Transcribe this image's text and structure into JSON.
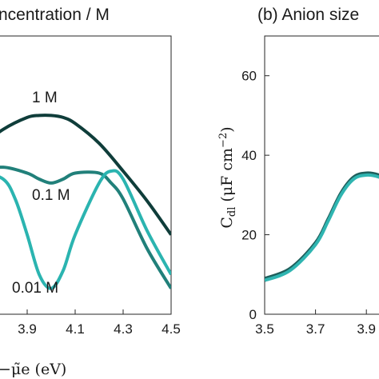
{
  "chart_data": [
    {
      "panel": "a",
      "type": "line",
      "title": "ncentration / M",
      "xlabel": "−μ̃e (eV)",
      "ylabel": "",
      "xlim": [
        3.7,
        4.5
      ],
      "ylim": [
        0,
        70
      ],
      "xticks": [
        "3.9",
        "4.1",
        "4.3",
        "4.5"
      ],
      "yticks": [],
      "grid": false,
      "annotations": [
        "1 M",
        "0.1 M",
        "0.01 M"
      ],
      "series": [
        {
          "name": "1 M",
          "color": "#0f3d3a",
          "x": [
            3.7,
            3.8,
            3.9,
            3.95,
            4.0,
            4.05,
            4.1,
            4.2,
            4.3,
            4.4,
            4.5
          ],
          "y": [
            42,
            46.5,
            49.5,
            50,
            50,
            49.5,
            48,
            43,
            36,
            28.5,
            20
          ]
        },
        {
          "name": "0.1 M",
          "color": "#21807a",
          "x": [
            3.7,
            3.8,
            3.9,
            3.95,
            4.0,
            4.05,
            4.1,
            4.2,
            4.25,
            4.3,
            4.4,
            4.5
          ],
          "y": [
            36,
            37,
            35.5,
            34,
            33,
            34,
            35.5,
            35.5,
            33,
            29,
            16.5,
            6.5
          ]
        },
        {
          "name": "0.01 M",
          "color": "#2bb4b0",
          "x": [
            3.7,
            3.8,
            3.85,
            3.9,
            3.95,
            4.0,
            4.05,
            4.1,
            4.2,
            4.25,
            4.3,
            4.4,
            4.5
          ],
          "y": [
            36,
            34,
            29,
            20,
            10,
            6.5,
            11,
            20,
            33,
            36,
            34,
            21,
            10
          ]
        }
      ]
    },
    {
      "panel": "b",
      "type": "line",
      "title": "(b) Anion size",
      "xlabel": "",
      "ylabel": "Cdl (μF cm−2)",
      "xlim": [
        3.5,
        4.0
      ],
      "ylim": [
        0,
        70
      ],
      "xticks": [
        "3.5",
        "3.7",
        "3.9"
      ],
      "yticks": [
        "0",
        "20",
        "40",
        "60"
      ],
      "grid": false,
      "series": [
        {
          "name": "",
          "color": "#1e5e5b",
          "x": [
            3.5,
            3.6,
            3.7,
            3.75,
            3.8,
            3.85,
            3.9,
            3.95,
            4.0
          ],
          "y": [
            9,
            11.5,
            18,
            24,
            30.5,
            34.5,
            35.5,
            35,
            33.5
          ]
        },
        {
          "name": "",
          "color": "#2fb5b1",
          "x": [
            3.5,
            3.6,
            3.7,
            3.75,
            3.8,
            3.85,
            3.9,
            3.95,
            4.0
          ],
          "y": [
            8.5,
            11,
            17.5,
            23.5,
            30,
            34,
            35,
            34.5,
            33
          ]
        }
      ]
    }
  ]
}
